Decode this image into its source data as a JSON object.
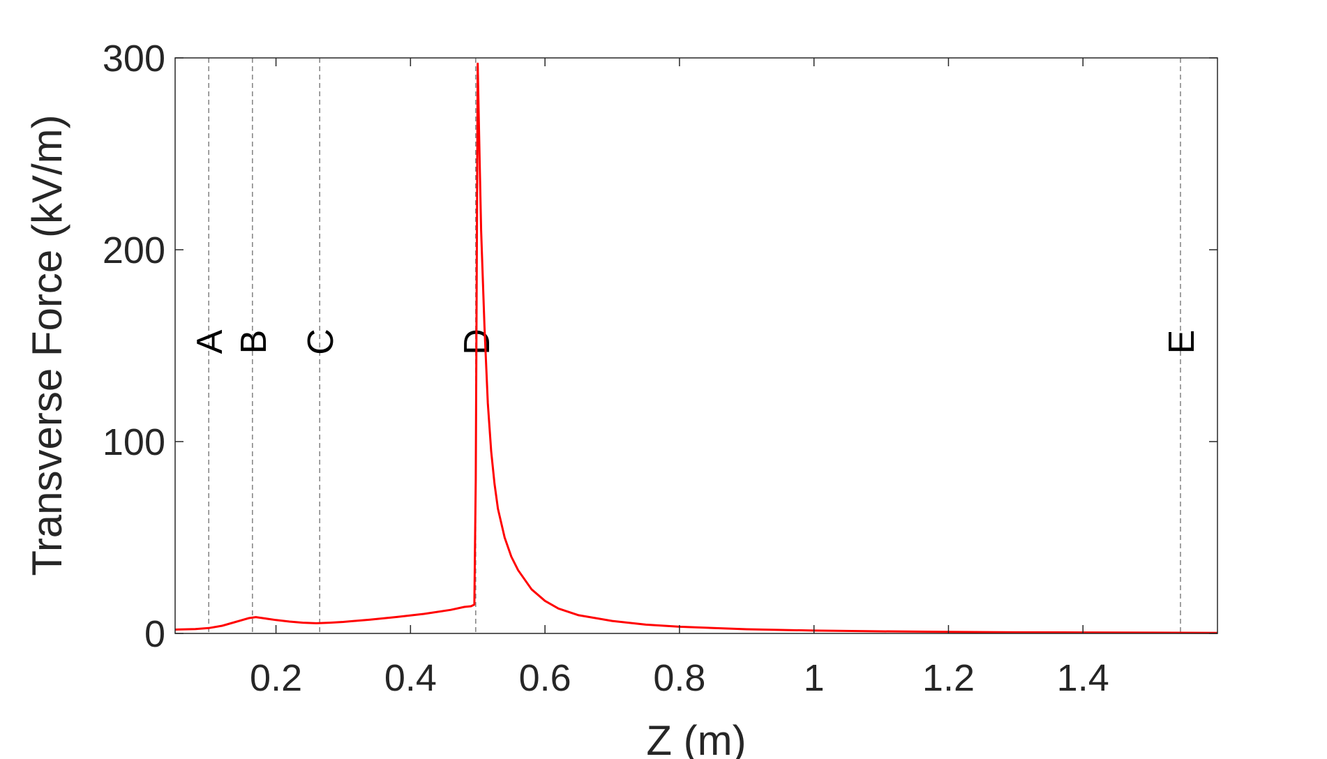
{
  "chart_data": {
    "type": "line",
    "title": "",
    "xlabel": "Z (m)",
    "ylabel": "Transverse Force (kV/m)",
    "xlim": [
      0.05,
      1.6
    ],
    "ylim": [
      0,
      300
    ],
    "x_ticks": [
      0.2,
      0.4,
      0.6,
      0.8,
      1,
      1.2,
      1.4
    ],
    "x_tick_labels": [
      "0.2",
      "0.4",
      "0.6",
      "0.8",
      "1",
      "1.2",
      "1.4"
    ],
    "y_ticks": [
      0,
      100,
      200,
      300
    ],
    "y_tick_labels": [
      "0",
      "100",
      "200",
      "300"
    ],
    "grid": false,
    "line_color": "#ff0000",
    "marker_color": "#808080",
    "markers": [
      {
        "label": "A",
        "x": 0.1
      },
      {
        "label": "B",
        "x": 0.165
      },
      {
        "label": "C",
        "x": 0.265
      },
      {
        "label": "D",
        "x": 0.497
      },
      {
        "label": "E",
        "x": 1.545
      }
    ],
    "series": [
      {
        "x": [
          0.05,
          0.08,
          0.1,
          0.12,
          0.14,
          0.16,
          0.17,
          0.18,
          0.2,
          0.22,
          0.24,
          0.26,
          0.28,
          0.3,
          0.34,
          0.38,
          0.42,
          0.46,
          0.48,
          0.49,
          0.495,
          0.497,
          0.5,
          0.502,
          0.505,
          0.51,
          0.515,
          0.52,
          0.525,
          0.53,
          0.54,
          0.55,
          0.56,
          0.58,
          0.6,
          0.62,
          0.65,
          0.7,
          0.75,
          0.8,
          0.9,
          1.0,
          1.1,
          1.2,
          1.3,
          1.4,
          1.5,
          1.6
        ],
        "y": [
          2,
          2.3,
          2.8,
          4,
          6,
          8,
          8.5,
          8,
          7,
          6.2,
          5.6,
          5.3,
          5.6,
          6,
          7.2,
          8.6,
          10.2,
          12.3,
          13.8,
          14.2,
          15,
          80,
          297,
          260,
          210,
          160,
          120,
          95,
          78,
          65,
          50,
          40,
          33,
          23,
          17,
          13,
          9.5,
          6.5,
          4.6,
          3.5,
          2.2,
          1.5,
          1.1,
          0.8,
          0.6,
          0.5,
          0.4,
          0.3
        ]
      }
    ]
  }
}
